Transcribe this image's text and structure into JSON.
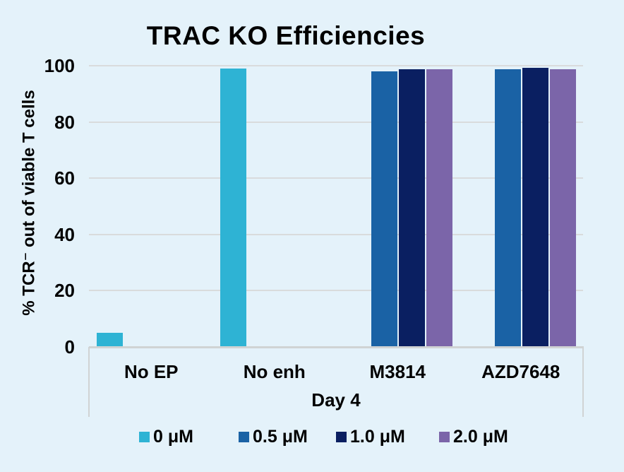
{
  "chart_data": {
    "type": "bar",
    "title": "TRAC KO Efficiencies",
    "ylabel": "% TCR⁻ out of viable T cells",
    "xlabel": "Day 4",
    "ylim": [
      0,
      100
    ],
    "yticks": [
      0,
      20,
      40,
      60,
      80,
      100
    ],
    "categories": [
      "No EP",
      "No enh",
      "M3814",
      "AZD7648"
    ],
    "series": [
      {
        "name": "0 μM",
        "color": "#2eb3d4",
        "values": [
          5,
          99,
          null,
          null
        ]
      },
      {
        "name": "0.5 μM",
        "color": "#1a62a5",
        "values": [
          null,
          null,
          98,
          98.8
        ]
      },
      {
        "name": "1.0 μM",
        "color": "#0a1f61",
        "values": [
          null,
          null,
          98.7,
          99.3
        ]
      },
      {
        "name": "2.0 μM",
        "color": "#7b65a9",
        "values": [
          null,
          null,
          98.7,
          98.8
        ]
      }
    ],
    "grid": true,
    "legend_position": "bottom",
    "background_color": "#e4f2fa",
    "gridline_color": "#d9dbdc",
    "axis_line_color": "#d0d3d4"
  }
}
